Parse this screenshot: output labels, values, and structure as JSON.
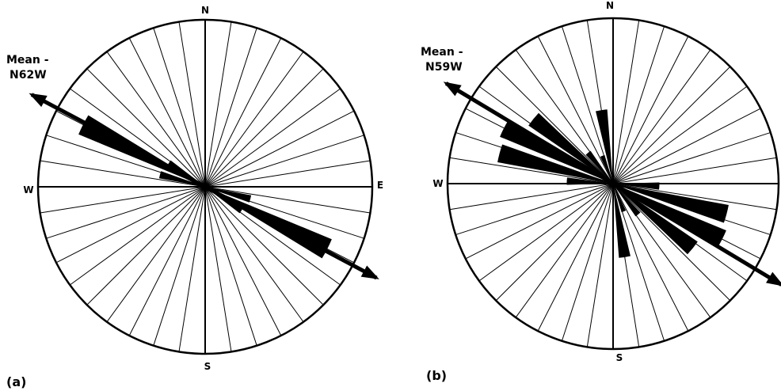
{
  "diagrams": [
    {
      "panel_label": "(a)",
      "mean_label_line1": "Mean -",
      "mean_label_line2": "N62W",
      "mean_direction_deg": 298,
      "compass": {
        "north": "N",
        "south": "S",
        "east": "E",
        "west": "W"
      },
      "petals": [
        {
          "center_deg": 297,
          "relative_length": 0.82
        },
        {
          "center_deg": 117,
          "relative_length": 0.82
        },
        {
          "center_deg": 303,
          "relative_length": 0.26
        },
        {
          "center_deg": 123,
          "relative_length": 0.26
        },
        {
          "center_deg": 285,
          "relative_length": 0.28
        },
        {
          "center_deg": 105,
          "relative_length": 0.28
        }
      ]
    },
    {
      "panel_label": "(b)",
      "mean_label_line1": "Mean -",
      "mean_label_line2": "N59W",
      "mean_direction_deg": 301,
      "compass": {
        "north": "N",
        "south": "S",
        "east": "",
        "west": "W"
      },
      "petals": [
        {
          "center_deg": 297,
          "relative_length": 0.74
        },
        {
          "center_deg": 117,
          "relative_length": 0.74
        },
        {
          "center_deg": 285,
          "relative_length": 0.71
        },
        {
          "center_deg": 105,
          "relative_length": 0.71
        },
        {
          "center_deg": 309,
          "relative_length": 0.62
        },
        {
          "center_deg": 129,
          "relative_length": 0.62
        },
        {
          "center_deg": 273,
          "relative_length": 0.28
        },
        {
          "center_deg": 93,
          "relative_length": 0.28
        },
        {
          "center_deg": 351,
          "relative_length": 0.45
        },
        {
          "center_deg": 171,
          "relative_length": 0.45
        },
        {
          "center_deg": 321,
          "relative_length": 0.24
        },
        {
          "center_deg": 141,
          "relative_length": 0.24
        },
        {
          "center_deg": 339,
          "relative_length": 0.18
        },
        {
          "center_deg": 159,
          "relative_length": 0.18
        }
      ]
    }
  ]
}
